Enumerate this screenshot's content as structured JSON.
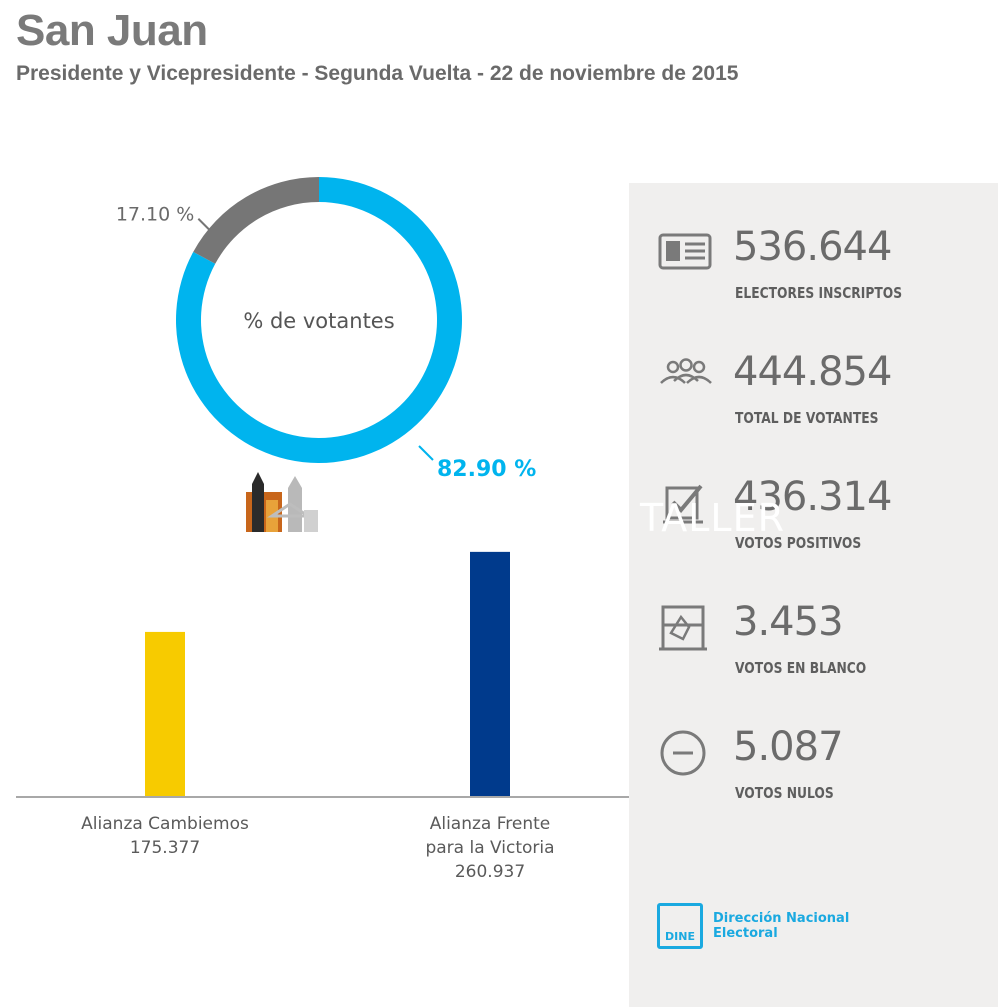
{
  "header": {
    "title": "San Juan",
    "subtitle": "Presidente y Vicepresidente - Segunda Vuelta - 22 de noviembre de 2015"
  },
  "watermark": "TALLER",
  "colors": {
    "donut_main": "#00b4ee",
    "donut_rest": "#767676",
    "cambiemos": "#f7cb00",
    "fpv": "#003a8c",
    "accent": "#1aa9e0"
  },
  "chart_data": [
    {
      "type": "pie",
      "center_label": "% de votantes",
      "slices": [
        {
          "value": 82.9,
          "label": "82.90 %",
          "color": "#00b4ee"
        },
        {
          "value": 17.1,
          "label": "17.10 %",
          "color": "#767676"
        }
      ]
    },
    {
      "type": "bar",
      "categories": [
        "Alianza Cambiemos",
        "Alianza Frente para la Victoria"
      ],
      "category_lines": [
        [
          "Alianza Cambiemos"
        ],
        [
          "Alianza Frente",
          "para la Victoria"
        ]
      ],
      "values": [
        175377,
        260937
      ],
      "value_labels": [
        "175.377",
        "260.937"
      ],
      "colors": [
        "#f7cb00",
        "#003a8c"
      ],
      "ylim": [
        0,
        295000
      ]
    }
  ],
  "stats": [
    {
      "icon": "id-card-icon",
      "value": "536.644",
      "label": "ELECTORES INSCRIPTOS"
    },
    {
      "icon": "people-icon",
      "value": "444.854",
      "label": "TOTAL DE VOTANTES"
    },
    {
      "icon": "checked-ballot-icon",
      "value": "436.314",
      "label": "VOTOS POSITIVOS"
    },
    {
      "icon": "ballot-box-icon",
      "value": "3.453",
      "label": "VOTOS EN BLANCO"
    },
    {
      "icon": "minus-circle-icon",
      "value": "5.087",
      "label": "VOTOS NULOS"
    }
  ],
  "footer": {
    "logo_box_text": "DINE",
    "logo_name_line1": "Dirección Nacional",
    "logo_name_line2": "Electoral"
  }
}
